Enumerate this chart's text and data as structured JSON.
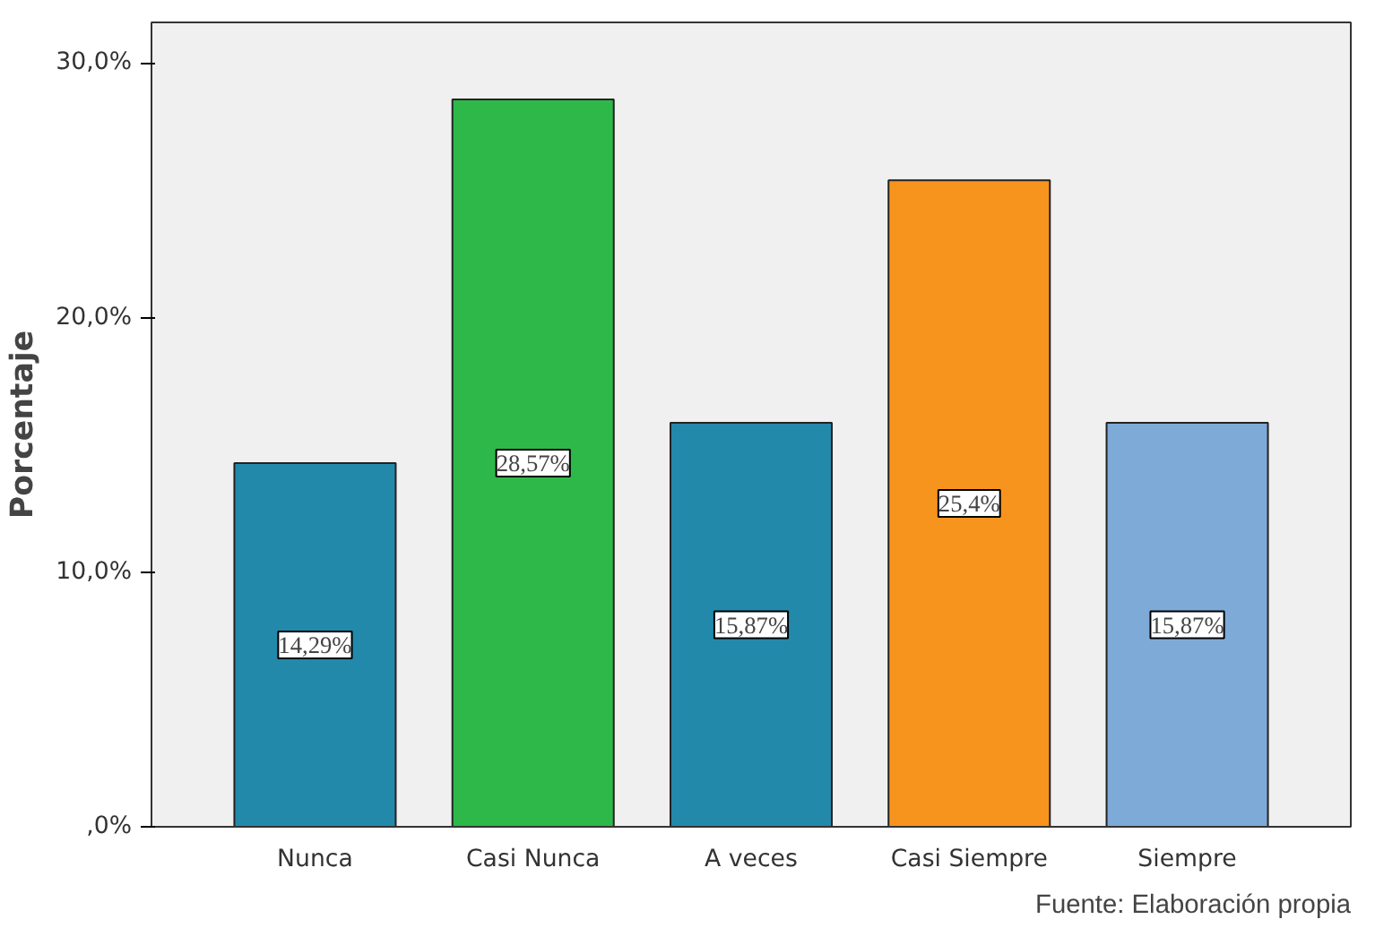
{
  "chart_data": {
    "type": "bar",
    "ylabel": "Porcentaje",
    "categories": [
      "Nunca",
      "Casi Nunca",
      "A veces",
      "Casi Siempre",
      "Siempre"
    ],
    "values": [
      14.29,
      28.57,
      15.87,
      25.4,
      15.87
    ],
    "colors": [
      "#2389aa",
      "#2fb84a",
      "#2389aa",
      "#f7941e",
      "#7eaad8"
    ],
    "value_labels": [
      "14,29%",
      "28,57%",
      "15,87%",
      "25,4%",
      "15,87%"
    ],
    "ylim": [
      0,
      31.6
    ],
    "yticks": [
      {
        "value": 0,
        "label": ",0%"
      },
      {
        "value": 10,
        "label": "10,0%"
      },
      {
        "value": 20,
        "label": "20,0%"
      },
      {
        "value": 30,
        "label": "30,0%"
      }
    ],
    "grid": false,
    "annotations": [
      "Fuente: Elaboración propia"
    ]
  }
}
